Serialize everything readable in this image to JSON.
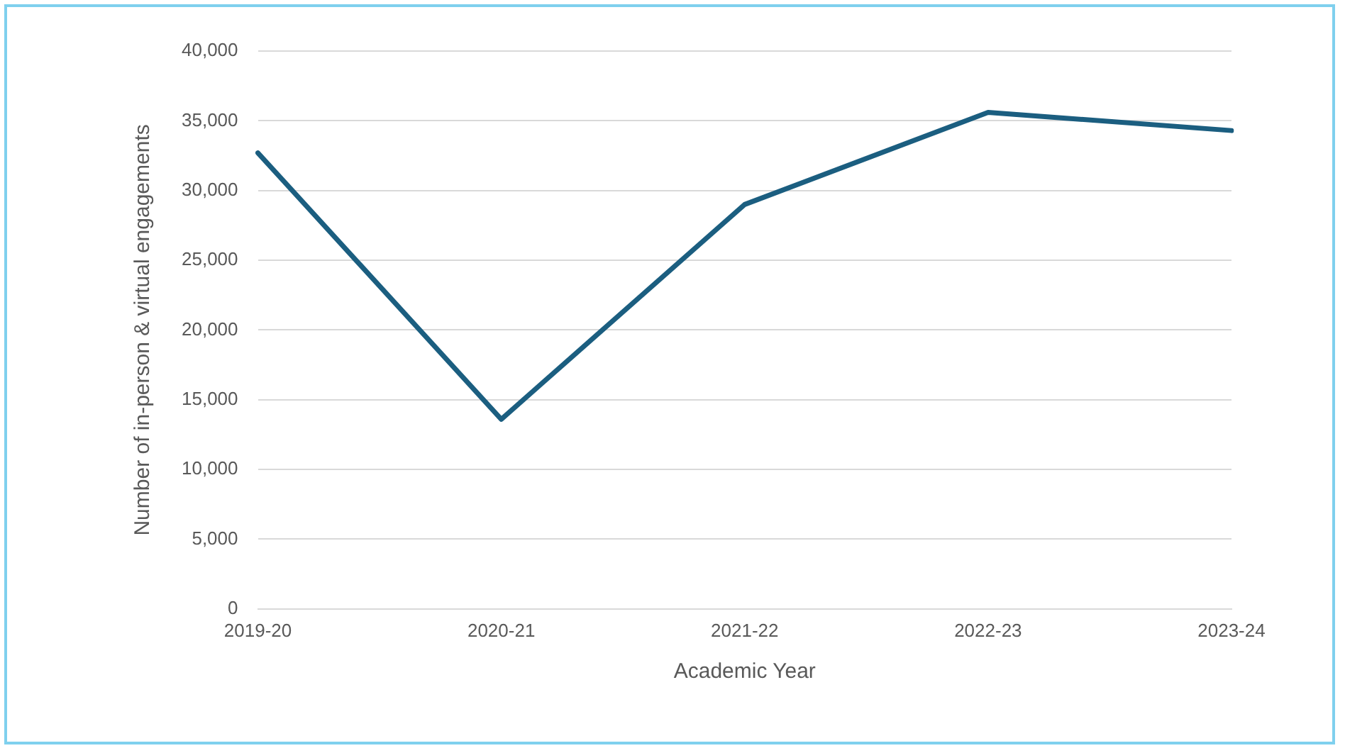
{
  "chart_data": {
    "type": "line",
    "xlabel": "Academic Year",
    "ylabel": "Number of in-person & virtual engagements",
    "categories": [
      "2019-20",
      "2020-21",
      "2021-22",
      "2022-23",
      "2023-24"
    ],
    "series": [
      {
        "color": "#1b5e80",
        "values": [
          32700,
          13600,
          29000,
          35600,
          34300
        ]
      }
    ],
    "ylim": [
      0,
      40000
    ],
    "yticks": [
      {
        "value": 0,
        "label": "0"
      },
      {
        "value": 5000,
        "label": "5,000"
      },
      {
        "value": 10000,
        "label": "10,000"
      },
      {
        "value": 15000,
        "label": "15,000"
      },
      {
        "value": 20000,
        "label": "20,000"
      },
      {
        "value": 25000,
        "label": "25,000"
      },
      {
        "value": 30000,
        "label": "30,000"
      },
      {
        "value": 35000,
        "label": "35,000"
      },
      {
        "value": 40000,
        "label": "40,000"
      }
    ],
    "grid": "y",
    "legend": false,
    "marker": "none",
    "line_style": "solid"
  }
}
